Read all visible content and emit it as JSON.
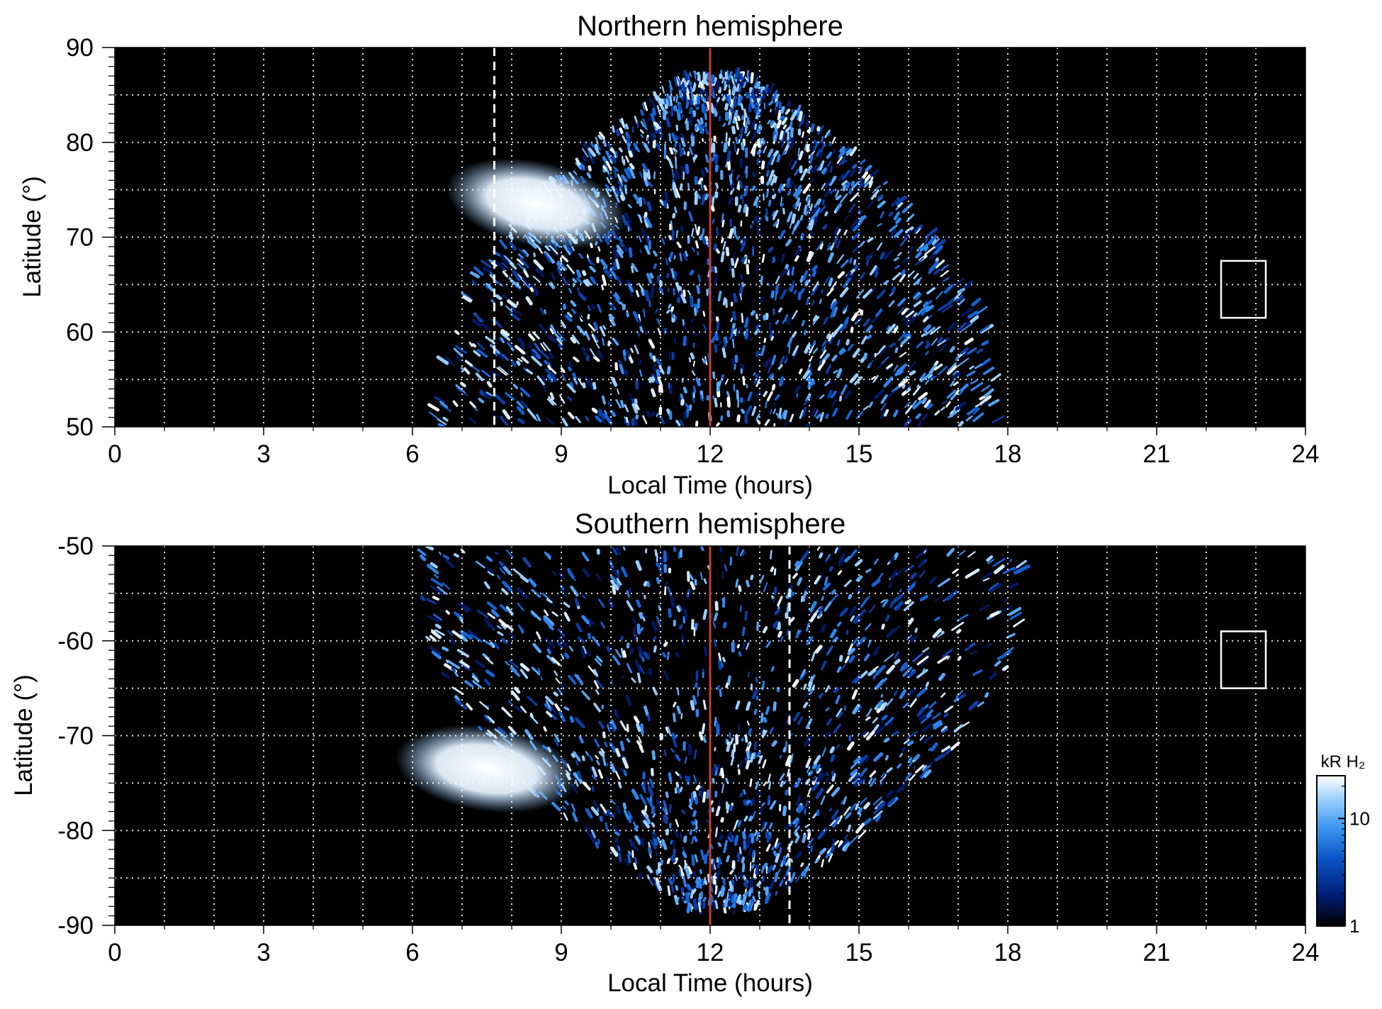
{
  "chart_data": [
    {
      "type": "heatmap",
      "title": "Northern hemisphere",
      "xlabel": "Local Time (hours)",
      "ylabel": "Latitude (°)",
      "xlim": [
        0,
        24
      ],
      "ylim": [
        50,
        90
      ],
      "x_ticks": [
        "0",
        "3",
        "6",
        "9",
        "12",
        "15",
        "18",
        "21",
        "24"
      ],
      "x_tick_values": [
        0,
        3,
        6,
        9,
        12,
        15,
        18,
        21,
        24
      ],
      "y_ticks": [
        "50",
        "60",
        "70",
        "80",
        "90"
      ],
      "y_tick_values": [
        50,
        60,
        70,
        80,
        90
      ],
      "grid": true,
      "background": "#000000",
      "noon_line": {
        "x": 12,
        "color": "#c8402a"
      },
      "dashed_marker": {
        "x": 7.65,
        "color": "#ffffff"
      },
      "emission_region": {
        "lt_start": 6.5,
        "lt_end": 17.8,
        "lat_edge": 87
      },
      "bright_spot": {
        "lt": 8.5,
        "lat": 73.5
      },
      "reference_box": {
        "lt": [
          22.3,
          23.2
        ],
        "lat": [
          61.5,
          67.5
        ]
      }
    },
    {
      "type": "heatmap",
      "title": "Southern hemisphere",
      "xlabel": "Local Time (hours)",
      "ylabel": "Latitude (°)",
      "xlim": [
        0,
        24
      ],
      "ylim": [
        -90,
        -50
      ],
      "x_ticks": [
        "0",
        "3",
        "6",
        "9",
        "12",
        "15",
        "18",
        "21",
        "24"
      ],
      "x_tick_values": [
        0,
        3,
        6,
        9,
        12,
        15,
        18,
        21,
        24
      ],
      "y_ticks": [
        "-90",
        "-80",
        "-70",
        "-60",
        "-50"
      ],
      "y_tick_values": [
        -90,
        -80,
        -70,
        -60,
        -50
      ],
      "grid": true,
      "background": "#000000",
      "noon_line": {
        "x": 12,
        "color": "#c8402a"
      },
      "dashed_marker": {
        "x": 13.6,
        "color": "#ffffff"
      },
      "emission_region": {
        "lt_start": 6.0,
        "lt_end": 18.5,
        "lat_edge": -88
      },
      "bright_spot": {
        "lt": 7.5,
        "lat": -73.5
      },
      "reference_box": {
        "lt": [
          22.3,
          23.2
        ],
        "lat": [
          -65,
          -59
        ]
      }
    }
  ],
  "colorbar": {
    "label": "kR H₂",
    "ticks": [
      "1",
      "10"
    ],
    "tick_values": [
      1,
      10
    ],
    "scale": "log",
    "range": [
      1,
      25
    ],
    "colors": [
      "#000000",
      "#001d73",
      "#0a55c8",
      "#3d95f0",
      "#9fd0ff",
      "#ffffff"
    ]
  }
}
